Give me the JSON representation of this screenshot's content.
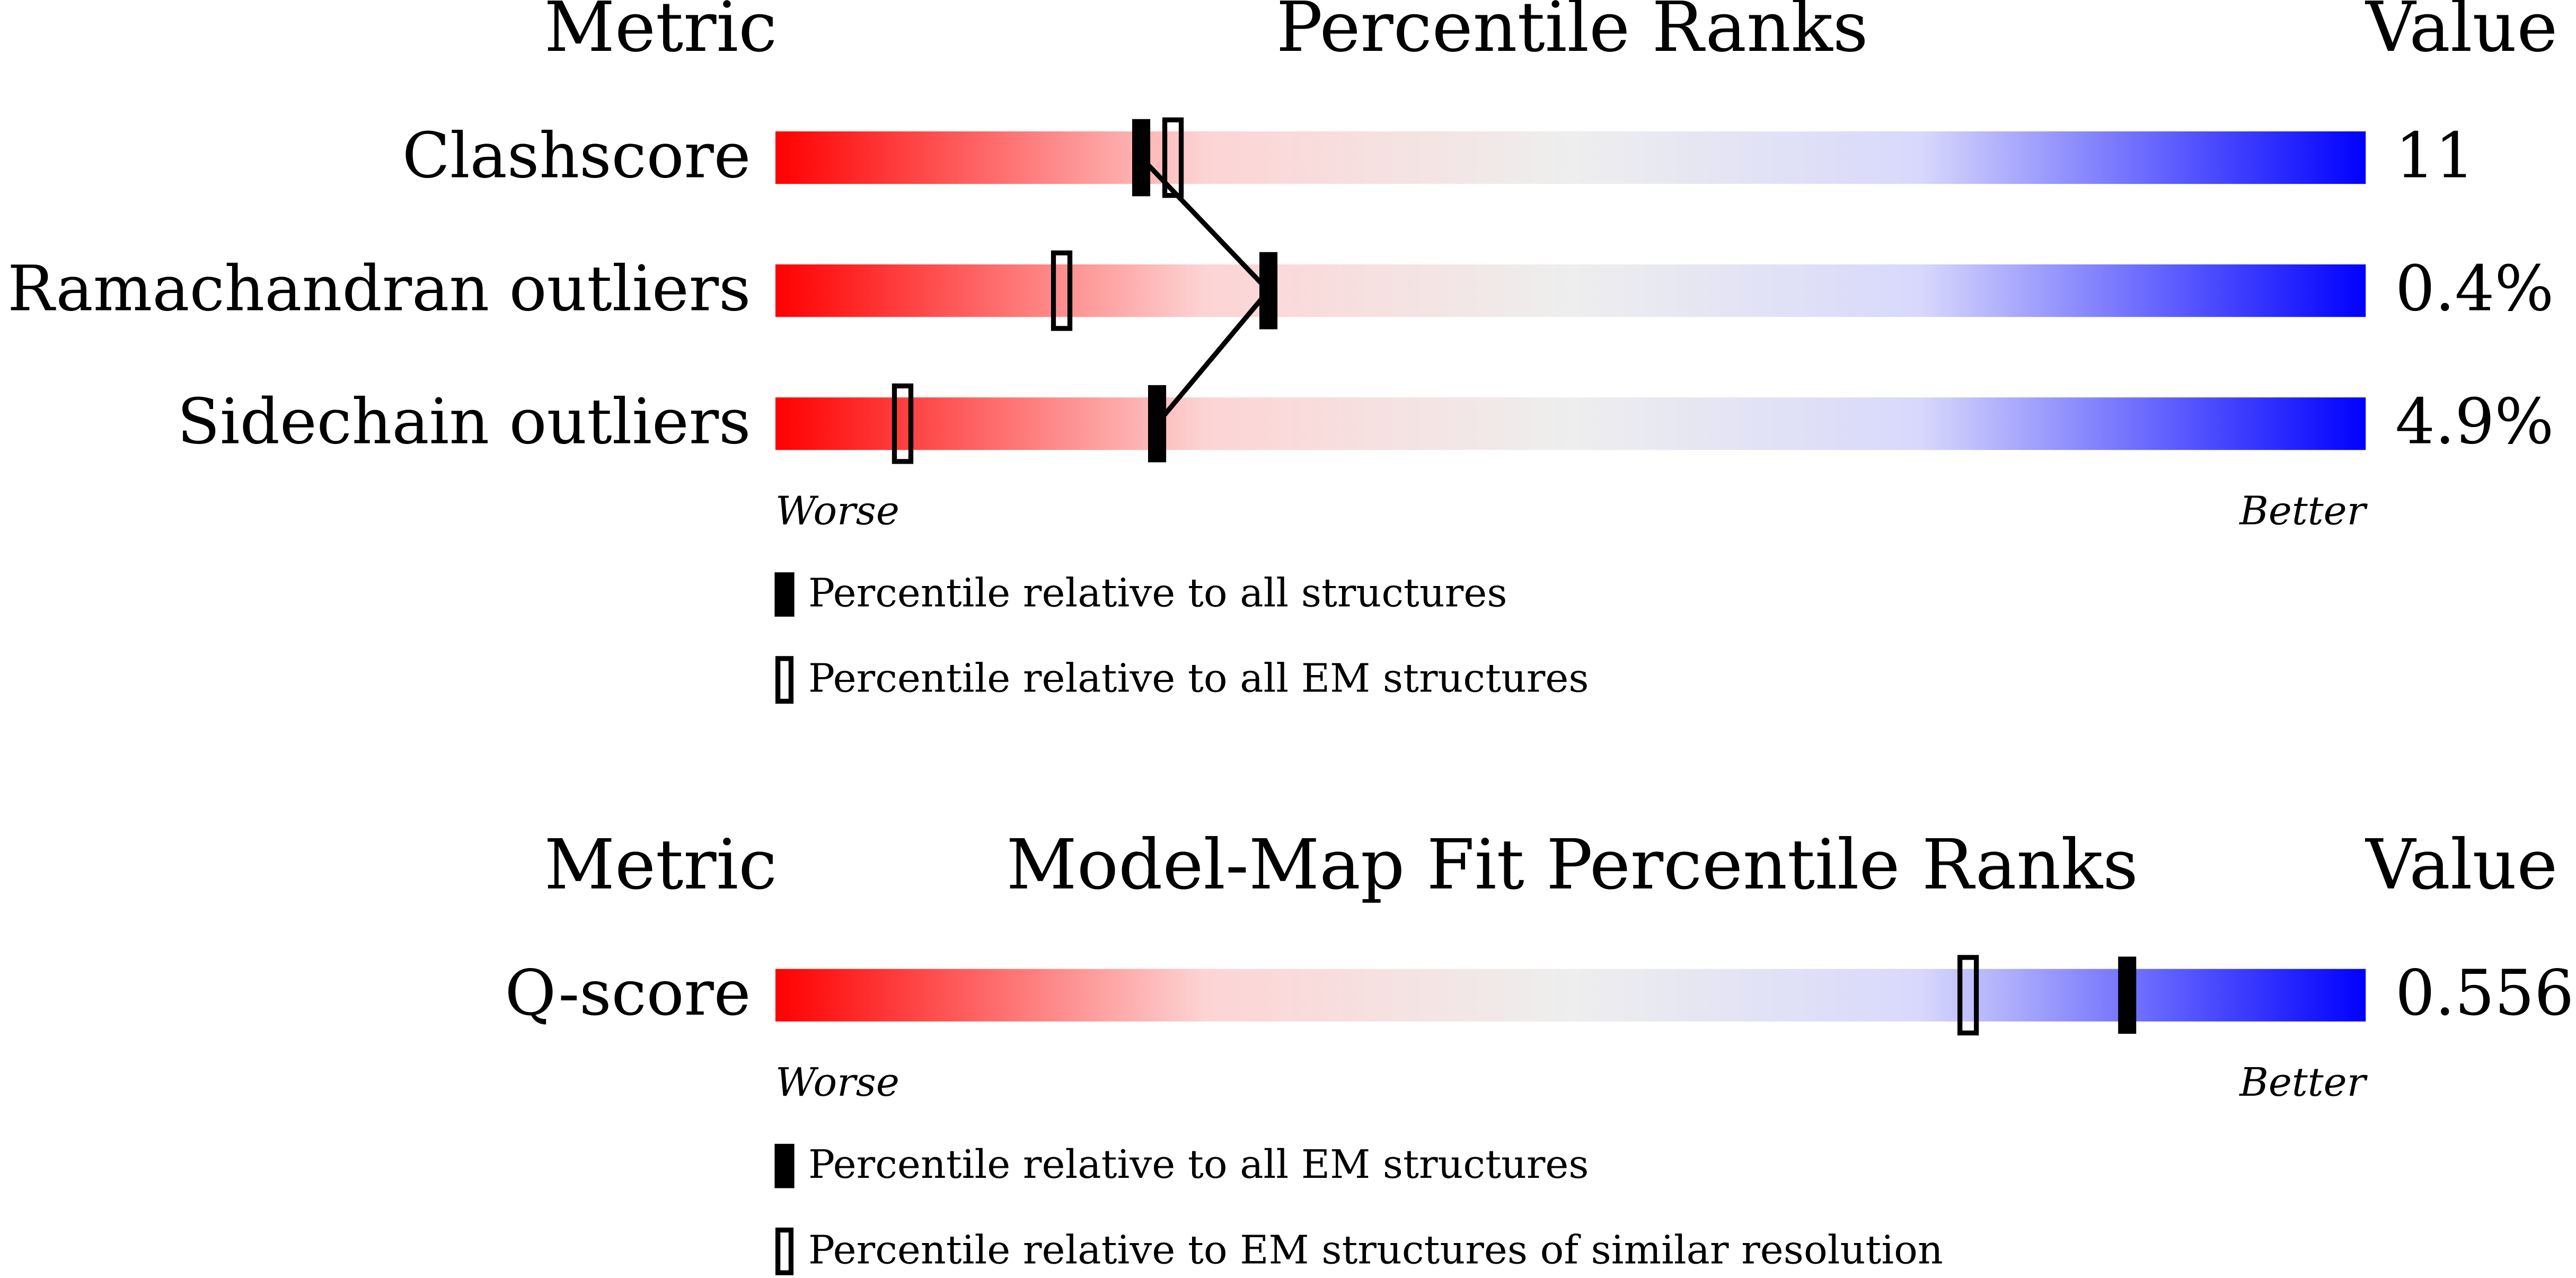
{
  "chart_data": [
    {
      "type": "percentile",
      "headers": [
        "Metric",
        "Percentile Ranks",
        "Value"
      ],
      "categories": [
        "Clashscore",
        "Ramachandran outliers",
        "Sidechain outliers"
      ],
      "metric_values": [
        "11",
        "0.4%",
        "4.9%"
      ],
      "series": [
        {
          "name": "Percentile relative to all structures",
          "style": "filled",
          "color": "#000000",
          "values": [
            23,
            31,
            24
          ]
        },
        {
          "name": "Percentile relative to all EM structures",
          "style": "hollow",
          "color": "#000000",
          "values": [
            25,
            18,
            8
          ]
        }
      ],
      "xlim": [
        0,
        100
      ],
      "x_low_label": "Worse",
      "x_high_label": "Better"
    },
    {
      "type": "percentile",
      "headers": [
        "Metric",
        "Model-Map Fit Percentile Ranks",
        "Value"
      ],
      "categories": [
        "Q-score"
      ],
      "metric_values": [
        "0.556"
      ],
      "series": [
        {
          "name": "Percentile relative to all EM structures",
          "style": "filled",
          "color": "#000000",
          "values": [
            85
          ]
        },
        {
          "name": "Percentile relative to EM structures of similar resolution",
          "style": "hollow",
          "color": "#000000",
          "values": [
            75
          ]
        }
      ],
      "xlim": [
        0,
        100
      ],
      "x_low_label": "Worse",
      "x_high_label": "Better"
    }
  ]
}
